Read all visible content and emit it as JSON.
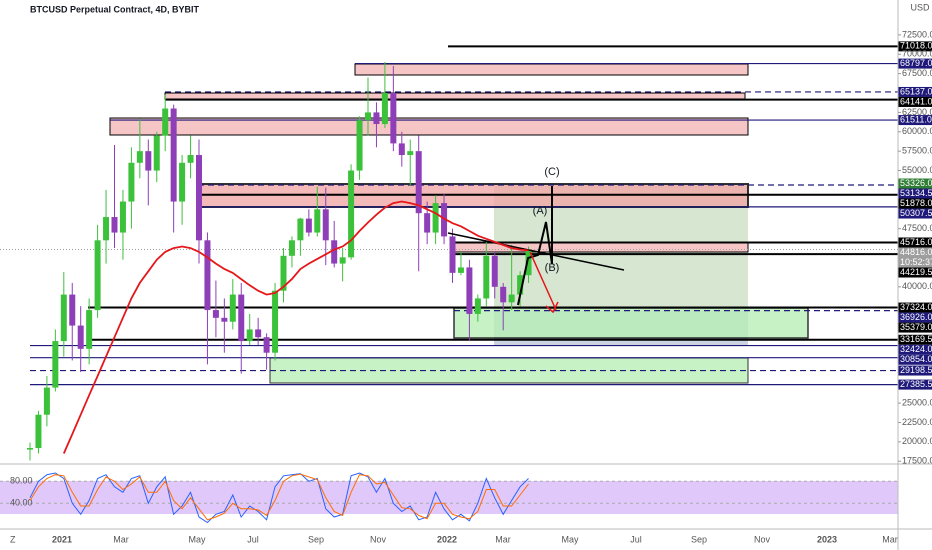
{
  "chart_data": {
    "type": "candlestick",
    "title": "BTCUSD Perpetual Contract, 4D, BYBIT",
    "currency": "USD",
    "ylim": [
      17400,
      77000
    ],
    "yticks": [
      {
        "value": 72500,
        "label": "72500.0"
      },
      {
        "value": 70000,
        "label": "70000.0"
      },
      {
        "value": 67500,
        "label": "67500.0"
      },
      {
        "value": 62500,
        "label": "62500.0"
      },
      {
        "value": 60000,
        "label": "60000.0"
      },
      {
        "value": 57500,
        "label": "57500.0"
      },
      {
        "value": 55000,
        "label": "55000.0"
      },
      {
        "value": 47500,
        "label": "47500.0"
      },
      {
        "value": 40000,
        "label": "40000.0"
      },
      {
        "value": 25000,
        "label": "25000.0"
      },
      {
        "value": 22500,
        "label": "22500.0"
      },
      {
        "value": 20000,
        "label": "20000.0"
      },
      {
        "value": 17500,
        "label": "17500.0"
      }
    ],
    "x_labels": [
      "2021",
      "Mar",
      "May",
      "Jul",
      "Sep",
      "Nov",
      "2022",
      "Mar",
      "May",
      "Jul",
      "Sep",
      "Nov",
      "2023",
      "Mar"
    ],
    "up_color": "#3cc13b",
    "down_color": "#8e3fb8",
    "candles": [
      [
        19000,
        19900,
        17600,
        19200
      ],
      [
        19200,
        24000,
        18500,
        23500
      ],
      [
        23500,
        28500,
        22000,
        27000
      ],
      [
        27000,
        34500,
        26500,
        33000
      ],
      [
        33000,
        41900,
        31000,
        39000
      ],
      [
        39000,
        40500,
        30500,
        35000
      ],
      [
        35000,
        37500,
        29000,
        32000
      ],
      [
        32000,
        38500,
        30000,
        37000
      ],
      [
        37000,
        48000,
        36000,
        46000
      ],
      [
        46000,
        52500,
        43000,
        49000
      ],
      [
        49000,
        58300,
        45000,
        47000
      ],
      [
        47000,
        52500,
        43500,
        51000
      ],
      [
        51000,
        58000,
        47500,
        56000
      ],
      [
        56000,
        61700,
        54000,
        57500
      ],
      [
        57500,
        59000,
        50500,
        55000
      ],
      [
        55000,
        60000,
        53500,
        59500
      ],
      [
        59500,
        64800,
        57500,
        63000
      ],
      [
        63000,
        63500,
        47000,
        51000
      ],
      [
        51000,
        57000,
        48000,
        56000
      ],
      [
        56000,
        59500,
        54000,
        57000
      ],
      [
        57000,
        59000,
        43000,
        46000
      ],
      [
        46000,
        47000,
        30000,
        37000
      ],
      [
        37000,
        40800,
        33500,
        36000
      ],
      [
        36000,
        38500,
        31500,
        35500
      ],
      [
        35500,
        41000,
        34500,
        39000
      ],
      [
        39000,
        40500,
        28800,
        33000
      ],
      [
        33000,
        36500,
        32500,
        34500
      ],
      [
        34500,
        36000,
        32500,
        33500
      ],
      [
        33500,
        34000,
        29300,
        31500
      ],
      [
        31500,
        40500,
        30500,
        39500
      ],
      [
        39500,
        45000,
        38000,
        44000
      ],
      [
        44000,
        46500,
        42500,
        46000
      ],
      [
        46000,
        48900,
        44000,
        48800
      ],
      [
        48800,
        50000,
        46500,
        47000
      ],
      [
        47000,
        52900,
        46500,
        50000
      ],
      [
        50000,
        52800,
        42800,
        46000
      ],
      [
        46000,
        48500,
        42500,
        43000
      ],
      [
        43000,
        45000,
        40700,
        43800
      ],
      [
        43800,
        55800,
        43500,
        55000
      ],
      [
        55000,
        62000,
        53800,
        61500
      ],
      [
        61500,
        67000,
        59500,
        62500
      ],
      [
        62500,
        63800,
        58000,
        61000
      ],
      [
        61000,
        69000,
        60500,
        65000
      ],
      [
        65000,
        68500,
        57500,
        58500
      ],
      [
        58500,
        60000,
        55500,
        57000
      ],
      [
        57000,
        59000,
        53000,
        57500
      ],
      [
        57500,
        59500,
        42000,
        49500
      ],
      [
        49500,
        51000,
        45500,
        47000
      ],
      [
        47000,
        51800,
        45500,
        50800
      ],
      [
        50800,
        52000,
        45500,
        46500
      ],
      [
        46500,
        47500,
        40500,
        41800
      ],
      [
        41800,
        44500,
        41500,
        42500
      ],
      [
        42500,
        43500,
        33000,
        36500
      ],
      [
        36500,
        39000,
        35500,
        38500
      ],
      [
        38500,
        45800,
        37500,
        44000
      ],
      [
        44000,
        44500,
        38500,
        40000
      ],
      [
        40000,
        40500,
        34400,
        38000
      ],
      [
        38000,
        45400,
        37000,
        39000
      ],
      [
        39000,
        42000,
        37500,
        41500
      ],
      [
        41500,
        45200,
        40500,
        44800
      ]
    ],
    "ma": {
      "color": "#e5171b",
      "values": [
        null,
        null,
        null,
        null,
        18500,
        21000,
        23500,
        26000,
        28500,
        31000,
        33500,
        36000,
        38500,
        40500,
        42000,
        43500,
        44500,
        45000,
        45200,
        45000,
        44500,
        43800,
        43000,
        42300,
        41800,
        41000,
        40200,
        39500,
        39000,
        39200,
        40000,
        41000,
        42300,
        43000,
        43600,
        44200,
        44800,
        45200,
        46000,
        47200,
        48300,
        49300,
        50200,
        50800,
        51000,
        50800,
        50500,
        50000,
        49500,
        48800,
        48200,
        47800,
        47200,
        46600,
        46200,
        45800,
        45400,
        45000,
        44800,
        44700
      ]
    },
    "levels": [
      {
        "value": 71018,
        "label": "71018.0",
        "color": "#000000",
        "style": "solid"
      },
      {
        "value": 68797,
        "label": "68797.0",
        "color": "#1f1a7a",
        "style": "solid"
      },
      {
        "value": 65137,
        "label": "65137.0",
        "color": "#1f1a7a",
        "style": "dashed"
      },
      {
        "value": 64141,
        "label": "64141.0",
        "color": "#000000",
        "style": "solid"
      },
      {
        "value": 61511,
        "label": "61511.0",
        "color": "#1f1a7a",
        "style": "solid"
      },
      {
        "value": 53326,
        "label": "53326.0",
        "color": "#2e7d32",
        "style": "none"
      },
      {
        "value": 53134.5,
        "label": "53134.5",
        "color": "#1f1a7a",
        "style": "dashed"
      },
      {
        "value": 51878,
        "label": "51878.0",
        "color": "#000000",
        "style": "solid"
      },
      {
        "value": 50307.5,
        "label": "50307.5",
        "color": "#1f1a7a",
        "style": "solid"
      },
      {
        "value": 45716,
        "label": "45716.0",
        "color": "#000000",
        "style": "solid"
      },
      {
        "value": 44816,
        "label": "44816.0",
        "color": "#9e9e9e",
        "style": "dotted"
      },
      {
        "value": 44219.5,
        "label": "44219.5",
        "color": "#000000",
        "style": "solid"
      },
      {
        "value": 37324,
        "label": "37324.0",
        "color": "#000000",
        "style": "solid"
      },
      {
        "value": 36926,
        "label": "36926.0",
        "color": "#1f1a7a",
        "style": "dashed"
      },
      {
        "value": 35379,
        "label": "35379.0",
        "color": "#000000",
        "style": "none"
      },
      {
        "value": 33169.5,
        "label": "33169.5",
        "color": "#000000",
        "style": "solid"
      },
      {
        "value": 32424,
        "label": "32424.0",
        "color": "#1f1a7a",
        "style": "solid"
      },
      {
        "value": 30854,
        "label": "30854.0",
        "color": "#1f1a7a",
        "style": "solid"
      },
      {
        "value": 29198.5,
        "label": "29198.5",
        "color": "#1f1a7a",
        "style": "dashed"
      },
      {
        "value": 27385.5,
        "label": "27385.5",
        "color": "#1f1a7a",
        "style": "solid"
      }
    ],
    "countdown": "10:52:37",
    "wave_labels": [
      "(C)",
      "(A)",
      "(B)"
    ],
    "stoch": {
      "ylim": [
        -5,
        106
      ],
      "yticks": [
        {
          "value": 80,
          "label": "80.00"
        },
        {
          "value": 40,
          "label": "40.00"
        }
      ],
      "series": [
        {
          "color": "#2962ff",
          "values": [
            50,
            80,
            92,
            95,
            85,
            40,
            20,
            45,
            85,
            92,
            70,
            60,
            85,
            90,
            40,
            70,
            88,
            20,
            35,
            60,
            15,
            5,
            20,
            25,
            55,
            15,
            35,
            25,
            10,
            70,
            90,
            92,
            94,
            80,
            85,
            30,
            15,
            20,
            90,
            95,
            88,
            60,
            85,
            40,
            25,
            35,
            10,
            15,
            60,
            30,
            10,
            20,
            8,
            40,
            85,
            50,
            20,
            45,
            70,
            85
          ]
        },
        {
          "color": "#ff6d00",
          "values": [
            45,
            70,
            85,
            92,
            90,
            60,
            35,
            35,
            65,
            88,
            80,
            65,
            75,
            88,
            60,
            60,
            80,
            45,
            30,
            50,
            30,
            10,
            15,
            22,
            40,
            30,
            30,
            28,
            18,
            45,
            80,
            90,
            93,
            88,
            83,
            50,
            25,
            18,
            60,
            92,
            90,
            75,
            78,
            55,
            32,
            30,
            18,
            12,
            40,
            40,
            20,
            15,
            12,
            25,
            65,
            65,
            35,
            35,
            55,
            75
          ]
        }
      ]
    }
  }
}
